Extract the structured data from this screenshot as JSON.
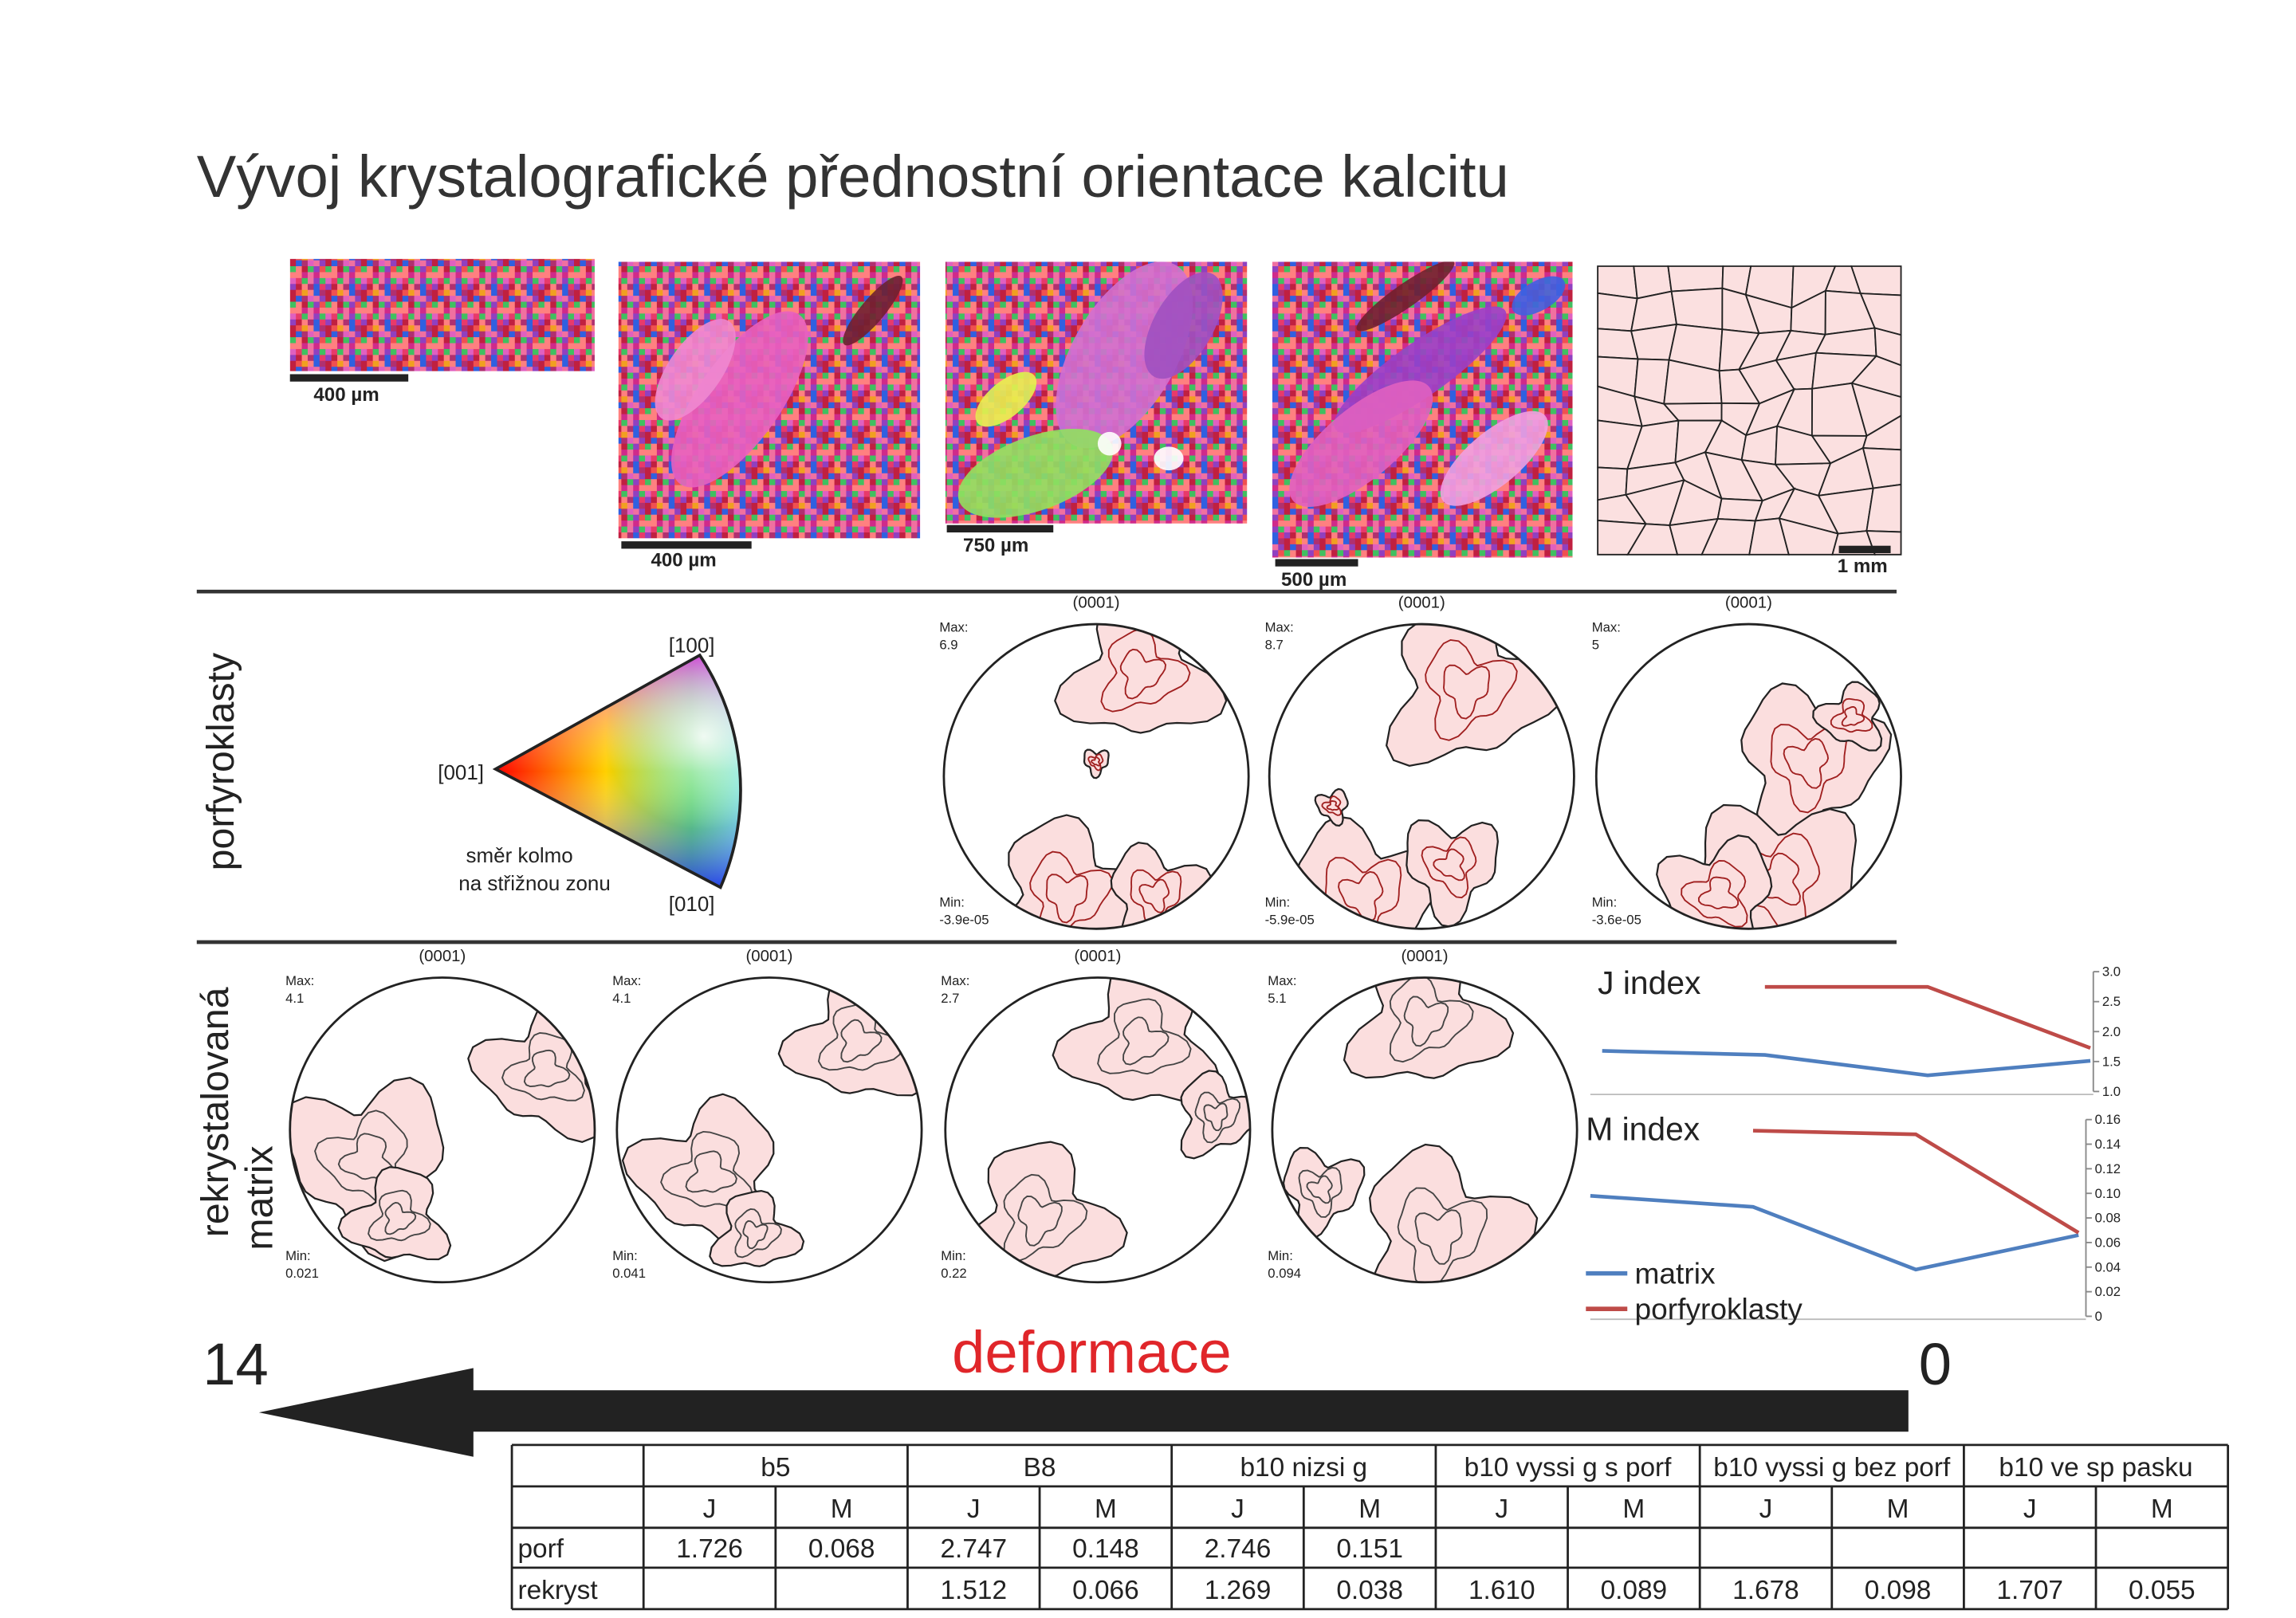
{
  "title": "Vývoj krystalografické přednostní orientace kalcitu",
  "maps": [
    {
      "scale_label": "400 µm"
    },
    {
      "scale_label": "400 µm"
    },
    {
      "scale_label": "750 µm"
    },
    {
      "scale_label": "500 µm"
    },
    {
      "scale_label": "1 mm"
    }
  ],
  "row_labels": {
    "porphyroclasts": "porfyroklasty",
    "matrix": [
      "rekrystalovaná",
      "matrix"
    ]
  },
  "color_key": {
    "top": "[100]",
    "left": "[001]",
    "bottom": "[010]",
    "caption": [
      "směr kolmo",
      "na střižnou zonu"
    ]
  },
  "pole_figures": {
    "plane": "(0001)",
    "max_label": "Max:",
    "min_label": "Min:",
    "porphyroclasts": [
      {
        "max": "6.9",
        "min": "-3.9e-05"
      },
      {
        "max": "8.7",
        "min": "-5.9e-05"
      },
      {
        "max": "5",
        "min": "-3.6e-05"
      }
    ],
    "matrix": [
      {
        "max": "4.1",
        "min": "0.021"
      },
      {
        "max": "4.1",
        "min": "0.041"
      },
      {
        "max": "2.7",
        "min": "0.22"
      },
      {
        "max": "5.1",
        "min": "0.094"
      }
    ]
  },
  "charts": [
    {
      "type": "line",
      "title": "J index",
      "ylim": [
        1,
        3
      ],
      "yticks": [
        {
          "value": 1,
          "label": "1.0"
        },
        1.5,
        {
          "value": 2,
          "label": "2.0"
        },
        2.5,
        {
          "value": 3,
          "label": "3.0"
        }
      ],
      "series": [
        {
          "color": "#4f7fbf",
          "values": [
            1.678,
            1.61,
            1.269,
            1.512
          ]
        },
        {
          "color": "#be4b48",
          "values": [
            null,
            2.746,
            2.747,
            1.726
          ]
        }
      ]
    },
    {
      "type": "line",
      "title": "M index",
      "ylim": [
        0,
        0.16
      ],
      "yticks": [
        0,
        0.02,
        0.04,
        0.06,
        0.08,
        {
          "value": 0.1,
          "label": "0.10"
        },
        0.12,
        0.14,
        0.16
      ],
      "series": [
        {
          "name": "matrix",
          "color": "#4f7fbf",
          "values": [
            0.098,
            0.089,
            0.038,
            0.066
          ]
        },
        {
          "name": "porfyroklasty",
          "color": "#be4b48",
          "values": [
            null,
            0.151,
            0.148,
            0.068
          ]
        }
      ]
    }
  ],
  "deformation": {
    "label": "deformace",
    "start": "14",
    "end": "0"
  },
  "table": {
    "groups": [
      "b5",
      "B8",
      "b10 nizsi g",
      "b10 vyssi g s porf",
      "b10 vyssi g bez porf",
      "b10 ve sp pasku"
    ],
    "subheaders": [
      "J",
      "M",
      "J",
      "M",
      "J",
      "M",
      "J",
      "M",
      "J",
      "M",
      "J",
      "M"
    ],
    "rows": [
      {
        "label": "porf",
        "cells": [
          "1.726",
          "0.068",
          "2.747",
          "0.148",
          "2.746",
          "0.151",
          null,
          null,
          null,
          null,
          null,
          null
        ]
      },
      {
        "label": "rekryst",
        "cells": [
          null,
          null,
          "1.512",
          "0.066",
          "1.269",
          "0.038",
          "1.610",
          "0.089",
          "1.678",
          "0.098",
          "1.707",
          "0.055"
        ]
      }
    ]
  }
}
